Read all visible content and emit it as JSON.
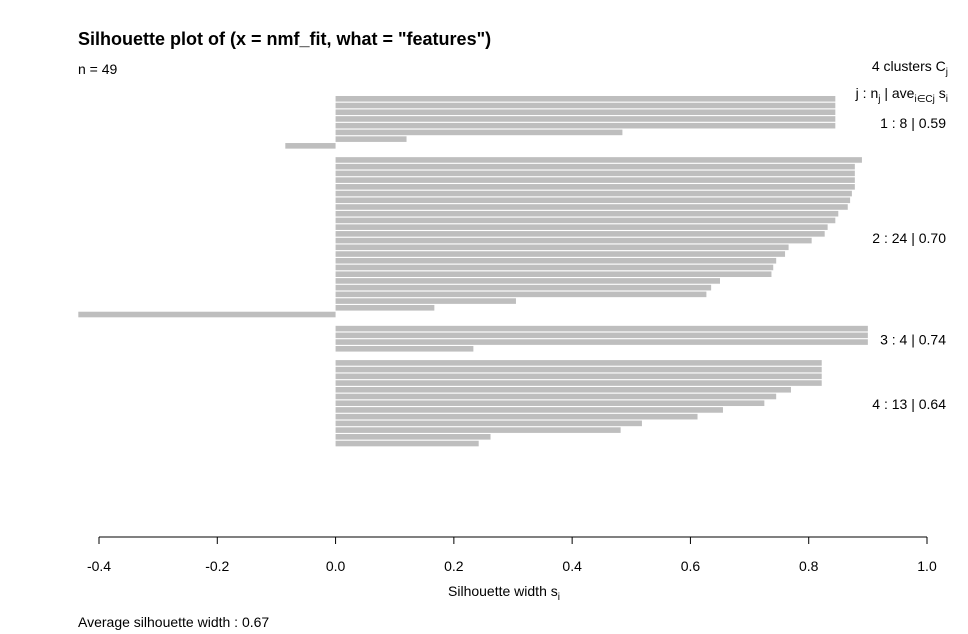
{
  "chart_data": {
    "type": "bar",
    "orientation": "horizontal",
    "title": "Silhouette plot of (x = nmf_fit, what = \"features\")",
    "subtitle": "n = 49",
    "xlabel_main": "Silhouette width s",
    "xlabel_sub": "i",
    "xlim": [
      -0.4,
      1.0
    ],
    "xticks": [
      -0.4,
      -0.2,
      0.0,
      0.2,
      0.4,
      0.6,
      0.8,
      1.0
    ],
    "xtick_labels": [
      "-0.4",
      "-0.2",
      "0.0",
      "0.2",
      "0.4",
      "0.6",
      "0.8",
      "1.0"
    ],
    "bar_color": "#bebebe",
    "footer": "Average silhouette width :  0.67",
    "legend": {
      "line1": "4  clusters  C",
      "line1_sub": "j",
      "line2_a": "j :  n",
      "line2_sub1": "j",
      "line2_b": " | ave",
      "line2_sub2": "i∈Cj",
      "line2_c": "  s",
      "line2_sub3": "i"
    },
    "clusters": [
      {
        "label": "1 :   8  |  0.59",
        "values": [
          0.845,
          0.845,
          0.845,
          0.845,
          0.845,
          0.485,
          0.12,
          -0.085
        ]
      },
      {
        "label": "2 :   24  |  0.70",
        "values": [
          0.89,
          0.878,
          0.878,
          0.878,
          0.878,
          0.873,
          0.87,
          0.866,
          0.85,
          0.845,
          0.832,
          0.827,
          0.805,
          0.766,
          0.76,
          0.745,
          0.74,
          0.737,
          0.65,
          0.635,
          0.627,
          0.305,
          0.167,
          -0.435
        ]
      },
      {
        "label": "3 :   4  |  0.74",
        "values": [
          0.9,
          0.9,
          0.9,
          0.233
        ]
      },
      {
        "label": "4 :   13  |  0.64",
        "values": [
          0.822,
          0.822,
          0.822,
          0.822,
          0.77,
          0.745,
          0.725,
          0.655,
          0.612,
          0.518,
          0.482,
          0.262,
          0.242
        ]
      }
    ]
  }
}
